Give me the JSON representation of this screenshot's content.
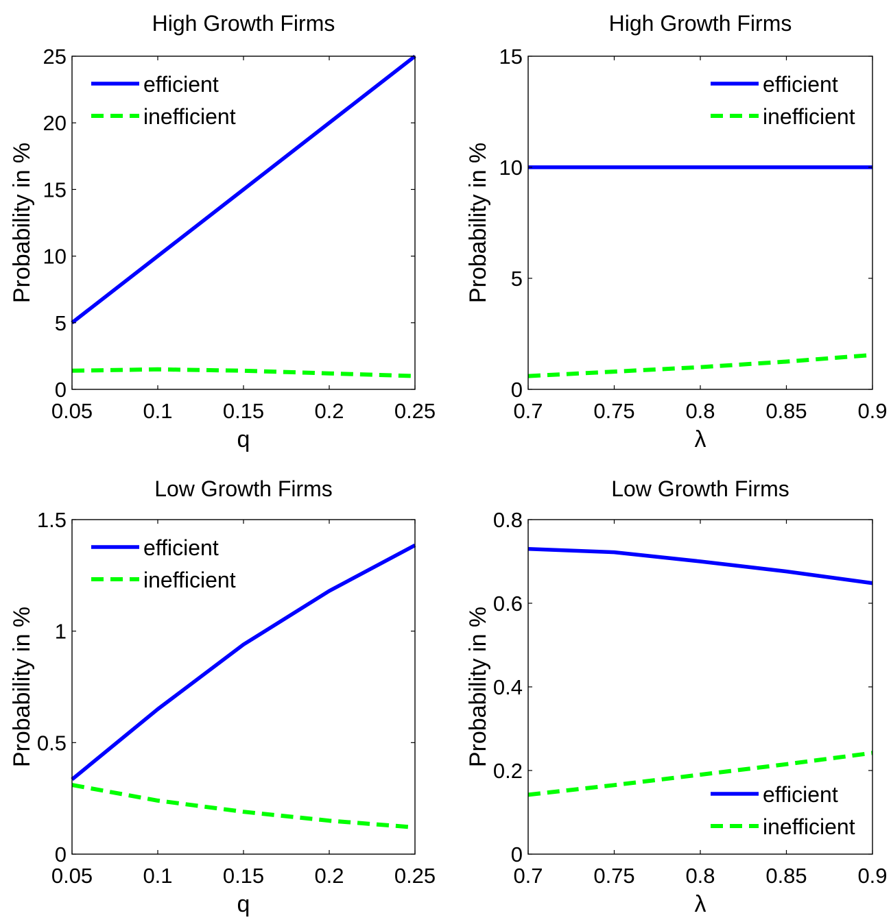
{
  "chart_data": [
    {
      "type": "line",
      "title": "High Growth Firms",
      "xlabel": "q",
      "ylabel": "Probability in %",
      "xlim": [
        0.05,
        0.25
      ],
      "ylim": [
        0,
        25
      ],
      "xticks": [
        0.05,
        0.1,
        0.15,
        0.2,
        0.25
      ],
      "xtick_labels": [
        "0.05",
        "0.1",
        "0.15",
        "0.2",
        "0.25"
      ],
      "yticks": [
        0,
        5,
        10,
        15,
        20,
        25
      ],
      "ytick_labels": [
        "0",
        "5",
        "10",
        "15",
        "20",
        "25"
      ],
      "legend_position": "top-left",
      "grid": false,
      "x": [
        0.05,
        0.1,
        0.15,
        0.2,
        0.25
      ],
      "series": [
        {
          "name": "efficient",
          "values": [
            5,
            10,
            15,
            20,
            25
          ],
          "color": "#0000ff",
          "style": "solid"
        },
        {
          "name": "inefficient",
          "values": [
            1.4,
            1.5,
            1.4,
            1.2,
            1.0
          ],
          "color": "#00ff00",
          "style": "dashed"
        }
      ]
    },
    {
      "type": "line",
      "title": "High Growth Firms",
      "xlabel": "λ",
      "ylabel": "Probability in %",
      "xlim": [
        0.7,
        0.9
      ],
      "ylim": [
        0,
        15
      ],
      "xticks": [
        0.7,
        0.75,
        0.8,
        0.85,
        0.9
      ],
      "xtick_labels": [
        "0.7",
        "0.75",
        "0.8",
        "0.85",
        "0.9"
      ],
      "yticks": [
        0,
        5,
        10,
        15
      ],
      "ytick_labels": [
        "0",
        "5",
        "10",
        "15"
      ],
      "legend_position": "top-right",
      "grid": false,
      "x": [
        0.7,
        0.75,
        0.8,
        0.85,
        0.9
      ],
      "series": [
        {
          "name": "efficient",
          "values": [
            10,
            10,
            10,
            10,
            10
          ],
          "color": "#0000ff",
          "style": "solid"
        },
        {
          "name": "inefficient",
          "values": [
            0.6,
            0.8,
            1.0,
            1.25,
            1.55
          ],
          "color": "#00ff00",
          "style": "dashed"
        }
      ]
    },
    {
      "type": "line",
      "title": "Low Growth Firms",
      "xlabel": "q",
      "ylabel": "Probability in %",
      "xlim": [
        0.05,
        0.25
      ],
      "ylim": [
        0,
        1.5
      ],
      "xticks": [
        0.05,
        0.1,
        0.15,
        0.2,
        0.25
      ],
      "xtick_labels": [
        "0.05",
        "0.1",
        "0.15",
        "0.2",
        "0.25"
      ],
      "yticks": [
        0,
        0.5,
        1,
        1.5
      ],
      "ytick_labels": [
        "0",
        "0.5",
        "1",
        "1.5"
      ],
      "legend_position": "top-left",
      "grid": false,
      "x": [
        0.05,
        0.1,
        0.15,
        0.2,
        0.25
      ],
      "series": [
        {
          "name": "efficient",
          "values": [
            0.335,
            0.65,
            0.94,
            1.18,
            1.385
          ],
          "color": "#0000ff",
          "style": "solid"
        },
        {
          "name": "inefficient",
          "values": [
            0.31,
            0.24,
            0.19,
            0.15,
            0.12
          ],
          "color": "#00ff00",
          "style": "dashed"
        }
      ]
    },
    {
      "type": "line",
      "title": "Low Growth Firms",
      "xlabel": "λ",
      "ylabel": "Probability in %",
      "xlim": [
        0.7,
        0.9
      ],
      "ylim": [
        0,
        0.8
      ],
      "xticks": [
        0.7,
        0.75,
        0.8,
        0.85,
        0.9
      ],
      "xtick_labels": [
        "0.7",
        "0.75",
        "0.8",
        "0.85",
        "0.9"
      ],
      "yticks": [
        0,
        0.2,
        0.4,
        0.6,
        0.8
      ],
      "ytick_labels": [
        "0",
        "0.2",
        "0.4",
        "0.6",
        "0.8"
      ],
      "legend_position": "bottom-right",
      "grid": false,
      "x": [
        0.7,
        0.75,
        0.8,
        0.85,
        0.9
      ],
      "series": [
        {
          "name": "efficient",
          "values": [
            0.73,
            0.722,
            0.7,
            0.676,
            0.648
          ],
          "color": "#0000ff",
          "style": "solid"
        },
        {
          "name": "inefficient",
          "values": [
            0.142,
            0.165,
            0.19,
            0.215,
            0.242
          ],
          "color": "#00ff00",
          "style": "dashed"
        }
      ]
    }
  ]
}
